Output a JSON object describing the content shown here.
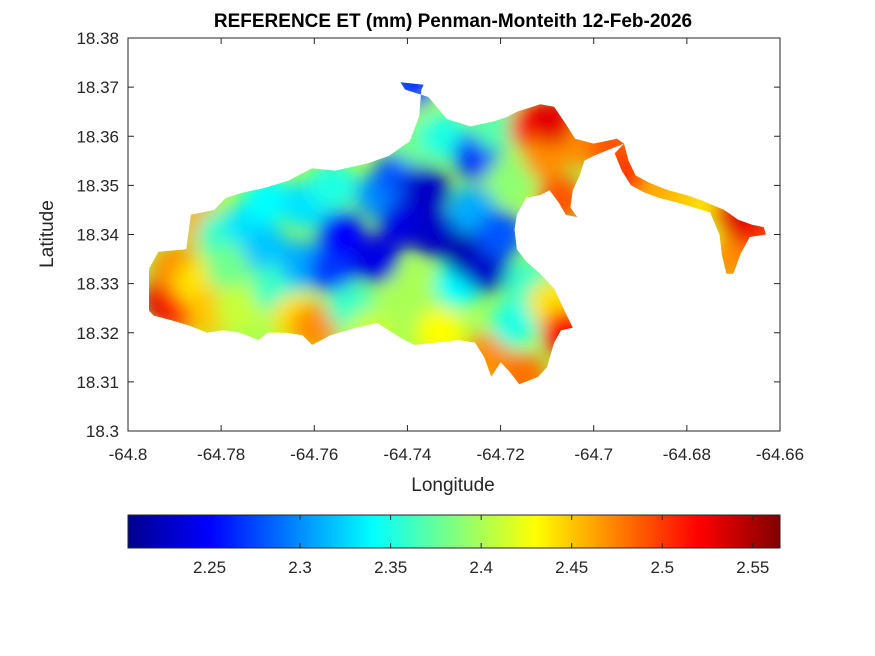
{
  "chart_data": {
    "type": "heatmap",
    "title": "REFERENCE ET (mm) Penman-Monteith 12-Feb-2026",
    "xlabel": "Longitude",
    "ylabel": "Latitude",
    "xlim": [
      -64.8,
      -64.66
    ],
    "ylim": [
      18.3,
      18.38
    ],
    "xticks": [
      -64.8,
      -64.78,
      -64.76,
      -64.74,
      -64.72,
      -64.7,
      -64.68,
      -64.66
    ],
    "xtick_labels": [
      "-64.8",
      "-64.78",
      "-64.76",
      "-64.74",
      "-64.72",
      "-64.7",
      "-64.68",
      "-64.66"
    ],
    "yticks": [
      18.3,
      18.31,
      18.32,
      18.33,
      18.34,
      18.35,
      18.36,
      18.37,
      18.38
    ],
    "ytick_labels": [
      "18.3",
      "18.31",
      "18.32",
      "18.33",
      "18.34",
      "18.35",
      "18.36",
      "18.37",
      "18.38"
    ],
    "colorbar": {
      "colormap": "jet",
      "clim": [
        2.205,
        2.565
      ],
      "ticks": [
        2.25,
        2.3,
        2.35,
        2.4,
        2.45,
        2.5,
        2.55
      ],
      "tick_labels": [
        "2.25",
        "2.3",
        "2.35",
        "2.4",
        "2.45",
        "2.5",
        "2.55"
      ],
      "placement": "south"
    },
    "grid": false,
    "island_outline": [
      [
        -64.7945,
        18.3235
      ],
      [
        -64.7955,
        18.3245
      ],
      [
        -64.7955,
        18.333
      ],
      [
        -64.7935,
        18.3365
      ],
      [
        -64.7875,
        18.337
      ],
      [
        -64.7865,
        18.344
      ],
      [
        -64.7815,
        18.345
      ],
      [
        -64.779,
        18.3475
      ],
      [
        -64.7755,
        18.3485
      ],
      [
        -64.7705,
        18.3495
      ],
      [
        -64.7655,
        18.351
      ],
      [
        -64.7605,
        18.3535
      ],
      [
        -64.7555,
        18.353
      ],
      [
        -64.7485,
        18.3545
      ],
      [
        -64.744,
        18.356
      ],
      [
        -64.7395,
        18.359
      ],
      [
        -64.7375,
        18.364
      ],
      [
        -64.737,
        18.3695
      ],
      [
        -64.7365,
        18.3705
      ],
      [
        -64.7415,
        18.371
      ],
      [
        -64.7405,
        18.3695
      ],
      [
        -64.7355,
        18.368
      ],
      [
        -64.7315,
        18.3635
      ],
      [
        -64.7265,
        18.362
      ],
      [
        -64.7215,
        18.363
      ],
      [
        -64.7185,
        18.364
      ],
      [
        -64.7165,
        18.365
      ],
      [
        -64.7115,
        18.3665
      ],
      [
        -64.7085,
        18.366
      ],
      [
        -64.706,
        18.3625
      ],
      [
        -64.704,
        18.3595
      ],
      [
        -64.7,
        18.3585
      ],
      [
        -64.695,
        18.3595
      ],
      [
        -64.6935,
        18.3585
      ],
      [
        -64.6975,
        18.357
      ],
      [
        -64.7,
        18.356
      ],
      [
        -64.702,
        18.355
      ],
      [
        -64.703,
        18.352
      ],
      [
        -64.7045,
        18.349
      ],
      [
        -64.705,
        18.3455
      ],
      [
        -64.7035,
        18.3435
      ],
      [
        -64.706,
        18.344
      ],
      [
        -64.7075,
        18.3465
      ],
      [
        -64.7095,
        18.349
      ],
      [
        -64.7115,
        18.348
      ],
      [
        -64.7145,
        18.3475
      ],
      [
        -64.7165,
        18.344
      ],
      [
        -64.717,
        18.341
      ],
      [
        -64.7165,
        18.337
      ],
      [
        -64.7145,
        18.3345
      ],
      [
        -64.7115,
        18.332
      ],
      [
        -64.7085,
        18.329
      ],
      [
        -64.7065,
        18.325
      ],
      [
        -64.7045,
        18.321
      ],
      [
        -64.707,
        18.3205
      ],
      [
        -64.7085,
        18.318
      ],
      [
        -64.71,
        18.313
      ],
      [
        -64.712,
        18.311
      ],
      [
        -64.716,
        18.3095
      ],
      [
        -64.718,
        18.312
      ],
      [
        -64.72,
        18.314
      ],
      [
        -64.722,
        18.311
      ],
      [
        -64.7235,
        18.315
      ],
      [
        -64.7255,
        18.318
      ],
      [
        -64.729,
        18.3185
      ],
      [
        -64.734,
        18.318
      ],
      [
        -64.7385,
        18.3175
      ],
      [
        -64.7415,
        18.319
      ],
      [
        -64.7465,
        18.322
      ],
      [
        -64.751,
        18.321
      ],
      [
        -64.7565,
        18.3195
      ],
      [
        -64.7605,
        18.3175
      ],
      [
        -64.7625,
        18.3195
      ],
      [
        -64.766,
        18.32
      ],
      [
        -64.77,
        18.32
      ],
      [
        -64.772,
        18.3185
      ],
      [
        -64.776,
        18.32
      ],
      [
        -64.7795,
        18.3205
      ],
      [
        -64.783,
        18.32
      ],
      [
        -64.787,
        18.3215
      ],
      [
        -64.7905,
        18.3225
      ]
    ],
    "east_arm_outline": [
      [
        -64.6935,
        18.3585
      ],
      [
        -64.6925,
        18.355
      ],
      [
        -64.691,
        18.352
      ],
      [
        -64.688,
        18.3505
      ],
      [
        -64.684,
        18.349
      ],
      [
        -64.68,
        18.348
      ],
      [
        -64.677,
        18.347
      ],
      [
        -64.6745,
        18.346
      ],
      [
        -64.672,
        18.345
      ],
      [
        -64.6705,
        18.344
      ],
      [
        -64.669,
        18.343
      ],
      [
        -64.666,
        18.342
      ],
      [
        -64.6635,
        18.3415
      ],
      [
        -64.663,
        18.34
      ],
      [
        -64.6665,
        18.3395
      ],
      [
        -64.6685,
        18.336
      ],
      [
        -64.67,
        18.332
      ],
      [
        -64.6715,
        18.332
      ],
      [
        -64.6725,
        18.336
      ],
      [
        -64.673,
        18.34
      ],
      [
        -64.675,
        18.3445
      ],
      [
        -64.6785,
        18.3455
      ],
      [
        -64.682,
        18.3465
      ],
      [
        -64.686,
        18.3475
      ],
      [
        -64.689,
        18.3485
      ],
      [
        -64.692,
        18.35
      ],
      [
        -64.694,
        18.353
      ],
      [
        -64.6955,
        18.3565
      ]
    ],
    "samples": [
      {
        "lon": -64.792,
        "lat": 18.327,
        "et": 2.53
      },
      {
        "lon": -64.788,
        "lat": 18.325,
        "et": 2.52
      },
      {
        "lon": -64.79,
        "lat": 18.333,
        "et": 2.47
      },
      {
        "lon": -64.785,
        "lat": 18.33,
        "et": 2.44
      },
      {
        "lon": -64.784,
        "lat": 18.342,
        "et": 2.46
      },
      {
        "lon": -64.78,
        "lat": 18.34,
        "et": 2.36
      },
      {
        "lon": -64.778,
        "lat": 18.333,
        "et": 2.38
      },
      {
        "lon": -64.782,
        "lat": 18.324,
        "et": 2.45
      },
      {
        "lon": -64.776,
        "lat": 18.325,
        "et": 2.41
      },
      {
        "lon": -64.774,
        "lat": 18.342,
        "et": 2.33
      },
      {
        "lon": -64.77,
        "lat": 18.347,
        "et": 2.34
      },
      {
        "lon": -64.77,
        "lat": 18.337,
        "et": 2.32
      },
      {
        "lon": -64.768,
        "lat": 18.329,
        "et": 2.36
      },
      {
        "lon": -64.764,
        "lat": 18.323,
        "et": 2.44
      },
      {
        "lon": -64.76,
        "lat": 18.321,
        "et": 2.47
      },
      {
        "lon": -64.762,
        "lat": 18.334,
        "et": 2.31
      },
      {
        "lon": -64.762,
        "lat": 18.346,
        "et": 2.33
      },
      {
        "lon": -64.756,
        "lat": 18.35,
        "et": 2.35
      },
      {
        "lon": -64.756,
        "lat": 18.333,
        "et": 2.27
      },
      {
        "lon": -64.754,
        "lat": 18.34,
        "et": 2.25
      },
      {
        "lon": -64.752,
        "lat": 18.325,
        "et": 2.36
      },
      {
        "lon": -64.748,
        "lat": 18.32,
        "et": 2.41
      },
      {
        "lon": -64.747,
        "lat": 18.335,
        "et": 2.24
      },
      {
        "lon": -64.746,
        "lat": 18.348,
        "et": 2.3
      },
      {
        "lon": -64.742,
        "lat": 18.352,
        "et": 2.28
      },
      {
        "lon": -64.741,
        "lat": 18.342,
        "et": 2.24
      },
      {
        "lon": -64.739,
        "lat": 18.328,
        "et": 2.4
      },
      {
        "lon": -64.738,
        "lat": 18.359,
        "et": 2.38
      },
      {
        "lon": -64.739,
        "lat": 18.368,
        "et": 2.4
      },
      {
        "lon": -64.739,
        "lat": 18.3705,
        "et": 2.27
      },
      {
        "lon": -64.736,
        "lat": 18.349,
        "et": 2.23
      },
      {
        "lon": -64.734,
        "lat": 18.34,
        "et": 2.23
      },
      {
        "lon": -64.733,
        "lat": 18.32,
        "et": 2.43
      },
      {
        "lon": -64.732,
        "lat": 18.36,
        "et": 2.35
      },
      {
        "lon": -64.729,
        "lat": 18.33,
        "et": 2.34
      },
      {
        "lon": -64.727,
        "lat": 18.336,
        "et": 2.22
      },
      {
        "lon": -64.726,
        "lat": 18.345,
        "et": 2.31
      },
      {
        "lon": -64.725,
        "lat": 18.356,
        "et": 2.27
      },
      {
        "lon": -64.723,
        "lat": 18.333,
        "et": 2.23
      },
      {
        "lon": -64.723,
        "lat": 18.315,
        "et": 2.47
      },
      {
        "lon": -64.721,
        "lat": 18.362,
        "et": 2.37
      },
      {
        "lon": -64.72,
        "lat": 18.34,
        "et": 2.28
      },
      {
        "lon": -64.718,
        "lat": 18.351,
        "et": 2.39
      },
      {
        "lon": -64.717,
        "lat": 18.322,
        "et": 2.35
      },
      {
        "lon": -64.715,
        "lat": 18.311,
        "et": 2.48
      },
      {
        "lon": -64.714,
        "lat": 18.33,
        "et": 2.36
      },
      {
        "lon": -64.713,
        "lat": 18.362,
        "et": 2.51
      },
      {
        "lon": -64.71,
        "lat": 18.356,
        "et": 2.47
      },
      {
        "lon": -64.709,
        "lat": 18.326,
        "et": 2.44
      },
      {
        "lon": -64.709,
        "lat": 18.363,
        "et": 2.53
      },
      {
        "lon": -64.707,
        "lat": 18.347,
        "et": 2.49
      },
      {
        "lon": -64.706,
        "lat": 18.32,
        "et": 2.52
      },
      {
        "lon": -64.701,
        "lat": 18.358,
        "et": 2.47
      },
      {
        "lon": -64.696,
        "lat": 18.358,
        "et": 2.49
      },
      {
        "lon": -64.692,
        "lat": 18.352,
        "et": 2.5
      },
      {
        "lon": -64.685,
        "lat": 18.349,
        "et": 2.46
      },
      {
        "lon": -64.679,
        "lat": 18.347,
        "et": 2.45
      },
      {
        "lon": -64.674,
        "lat": 18.345,
        "et": 2.44
      },
      {
        "lon": -64.671,
        "lat": 18.34,
        "et": 2.42
      },
      {
        "lon": -64.67,
        "lat": 18.335,
        "et": 2.47
      },
      {
        "lon": -64.665,
        "lat": 18.341,
        "et": 2.5
      },
      {
        "lon": -64.669,
        "lat": 18.344,
        "et": 2.53
      }
    ]
  }
}
